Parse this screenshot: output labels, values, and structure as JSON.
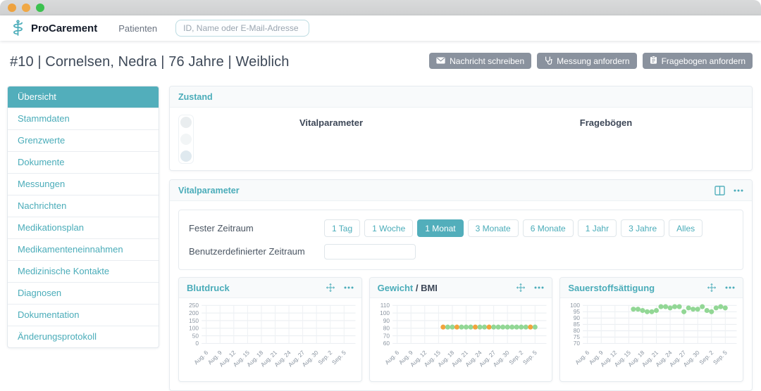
{
  "titlebar": {
    "traffic_lights": [
      "#eea23f",
      "#f0a845",
      "#3bc14f"
    ]
  },
  "navbar": {
    "brand": "ProCarement",
    "nav_items": [
      {
        "label": "Patienten"
      }
    ],
    "search_placeholder": "ID, Name oder E-Mail-Adresse"
  },
  "patient": {
    "title": "#10 | Cornelsen, Nedra | 76 Jahre | Weiblich",
    "actions": [
      {
        "label": "Nachricht schreiben",
        "icon": "envelope-icon"
      },
      {
        "label": "Messung anfordern",
        "icon": "stethoscope-icon"
      },
      {
        "label": "Fragebogen anfordern",
        "icon": "clipboard-icon"
      }
    ]
  },
  "sidebar": {
    "items": [
      {
        "label": "Übersicht",
        "active": true
      },
      {
        "label": "Stammdaten"
      },
      {
        "label": "Grenzwerte"
      },
      {
        "label": "Dokumente"
      },
      {
        "label": "Messungen"
      },
      {
        "label": "Nachrichten"
      },
      {
        "label": "Medikationsplan"
      },
      {
        "label": "Medikamenteneinnahmen"
      },
      {
        "label": "Medizinische Kontakte"
      },
      {
        "label": "Diagnosen"
      },
      {
        "label": "Dokumentation"
      },
      {
        "label": "Änderungsprotokoll"
      }
    ]
  },
  "zustand": {
    "title": "Zustand",
    "columns": [
      "Vitalparameter",
      "Fragebögen"
    ],
    "traffic_light_colors": [
      "#e9edef",
      "#f2f5f6",
      "#dfe9ef"
    ]
  },
  "vitalparameter": {
    "title": "Vitalparameter",
    "fixed_range_label": "Fester Zeitraum",
    "custom_range_label": "Benutzerdefinierter Zeitraum",
    "custom_range_value": "",
    "range_buttons": [
      {
        "label": "1 Tag"
      },
      {
        "label": "1 Woche"
      },
      {
        "label": "1 Monat",
        "active": true
      },
      {
        "label": "3 Monate"
      },
      {
        "label": "6 Monate"
      },
      {
        "label": "1 Jahr"
      },
      {
        "label": "3 Jahre"
      },
      {
        "label": "Alles"
      }
    ]
  },
  "chart_data": [
    {
      "type": "scatter",
      "title": "Blutdruck",
      "title_suffix": "",
      "ylim": [
        0,
        250
      ],
      "yticks": [
        0,
        50,
        100,
        150,
        200,
        250
      ],
      "xticks": [
        "Aug. 6",
        "Aug. 9",
        "Aug. 12",
        "Aug. 15",
        "Aug. 18",
        "Aug. 21",
        "Aug. 24",
        "Aug. 27",
        "Aug. 30",
        "Sep. 2",
        "Sep. 5"
      ],
      "grid": true,
      "points": {
        "dates": [],
        "values": [],
        "colors": []
      }
    },
    {
      "type": "scatter",
      "title": "Gewicht",
      "title_suffix": " / BMI",
      "ylim": [
        60,
        110
      ],
      "yticks": [
        60,
        70,
        80,
        90,
        100,
        110
      ],
      "xticks": [
        "Aug. 6",
        "Aug. 9",
        "Aug. 12",
        "Aug. 15",
        "Aug. 18",
        "Aug. 21",
        "Aug. 24",
        "Aug. 27",
        "Aug. 30",
        "Sep. 2",
        "Sep. 5"
      ],
      "grid": true,
      "points": {
        "dates": [
          "Aug. 16",
          "Aug. 17",
          "Aug. 18",
          "Aug. 19",
          "Aug. 20",
          "Aug. 21",
          "Aug. 22",
          "Aug. 23",
          "Aug. 24",
          "Aug. 25",
          "Aug. 26",
          "Aug. 27",
          "Aug. 28",
          "Aug. 29",
          "Aug. 30",
          "Aug. 31",
          "Sep. 1",
          "Sep. 2",
          "Sep. 3",
          "Sep. 4",
          "Sep. 5"
        ],
        "values": [
          81.5,
          81.5,
          81.5,
          81.5,
          81.5,
          81.5,
          81.5,
          81.5,
          81.5,
          81.5,
          81.5,
          81.5,
          81.5,
          81.5,
          81.5,
          81.5,
          81.5,
          81.5,
          81.5,
          81.5,
          81.5
        ],
        "colors": [
          "#f2a43c",
          "#92d795",
          "#92d795",
          "#f2a43c",
          "#92d795",
          "#92d795",
          "#92d795",
          "#f2a43c",
          "#92d795",
          "#92d795",
          "#f2a43c",
          "#92d795",
          "#92d795",
          "#92d795",
          "#92d795",
          "#92d795",
          "#92d795",
          "#92d795",
          "#92d795",
          "#f2a43c",
          "#92d795"
        ]
      }
    },
    {
      "type": "scatter",
      "title": "Sauerstoffsättigung",
      "title_suffix": "",
      "ylim": [
        70,
        100
      ],
      "yticks": [
        70,
        75,
        80,
        85,
        90,
        95,
        100
      ],
      "xticks": [
        "Aug. 6",
        "Aug. 9",
        "Aug. 12",
        "Aug. 15",
        "Aug. 18",
        "Aug. 21",
        "Aug. 24",
        "Aug. 27",
        "Aug. 30",
        "Sep. 2",
        "Sep. 5"
      ],
      "grid": true,
      "point_color": "#92d795",
      "points": {
        "dates": [
          "Aug. 16",
          "Aug. 17",
          "Aug. 18",
          "Aug. 19",
          "Aug. 20",
          "Aug. 21",
          "Aug. 22",
          "Aug. 23",
          "Aug. 24",
          "Aug. 25",
          "Aug. 26",
          "Aug. 27",
          "Aug. 28",
          "Aug. 29",
          "Aug. 30",
          "Aug. 31",
          "Sep. 1",
          "Sep. 2",
          "Sep. 3",
          "Sep. 4",
          "Sep. 5"
        ],
        "values": [
          97,
          97,
          96,
          95,
          95,
          96,
          99,
          99,
          98,
          99,
          99,
          95,
          98,
          97,
          97,
          99,
          96,
          95,
          98,
          99,
          98
        ],
        "colors": []
      }
    }
  ],
  "colors": {
    "accent_teal": "#4aacb9",
    "selected_teal": "#52aebb",
    "button_gray": "#8a929e",
    "point_green": "#92d795",
    "point_orange": "#f2a43c"
  }
}
